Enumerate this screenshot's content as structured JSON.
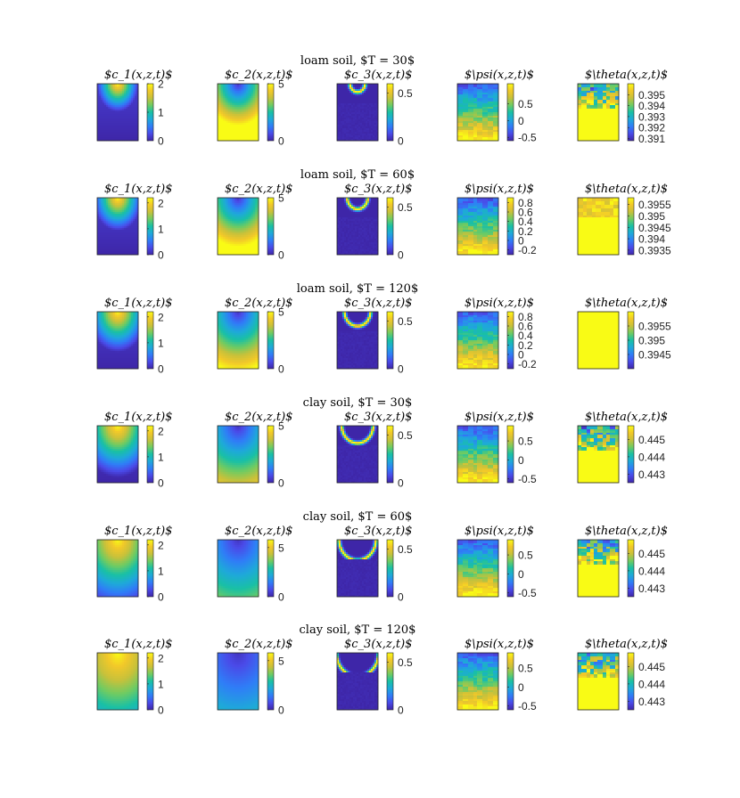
{
  "colormap": [
    "#3e26a8",
    "#4a4ae8",
    "#2f7df7",
    "#1ea9d9",
    "#19c0a5",
    "#6fcb62",
    "#c8c13a",
    "#f2c829",
    "#f9fb15"
  ],
  "variables": [
    "$c_1(x,z,t)$",
    "$c_2(x,z,t)$",
    "$c_3(x,z,t)$",
    "$\\psi(x,z,t)$",
    "$\\theta(x,z,t)$"
  ],
  "chart_data": [
    {
      "type": "heatmap",
      "title": "loam soil, $T = 30$",
      "panels": [
        {
          "name": "$c_1(x,z,t)$",
          "pattern": "plume",
          "clim": [
            0,
            2
          ],
          "ticks": [
            "2",
            "1",
            "0"
          ],
          "tick_values": [
            2,
            1,
            0
          ]
        },
        {
          "name": "$c_2(x,z,t)$",
          "pattern": "depleted",
          "clim": [
            0,
            5
          ],
          "ticks": [
            "5",
            "0"
          ],
          "tick_values": [
            5,
            0
          ]
        },
        {
          "name": "$c_3(x,z,t)$",
          "pattern": "ring",
          "clim": [
            0,
            0.6
          ],
          "ticks": [
            "0.5",
            "0"
          ],
          "tick_values": [
            0.5,
            0
          ]
        },
        {
          "name": "$\\psi(x,z,t)$",
          "pattern": "layered",
          "clim": [
            -0.6,
            1.1
          ],
          "ticks": [
            "0.5",
            "0",
            "-0.5"
          ],
          "tick_values": [
            0.5,
            0,
            -0.5
          ]
        },
        {
          "name": "$\\theta(x,z,t)$",
          "pattern": "top-noise",
          "clim": [
            0.3908,
            0.396
          ],
          "ticks": [
            "0.395",
            "0.394",
            "0.393",
            "0.392",
            "0.391"
          ],
          "tick_values": [
            0.395,
            0.394,
            0.393,
            0.392,
            0.391
          ]
        }
      ]
    },
    {
      "type": "heatmap",
      "title": "loam soil, $T = 60$",
      "panels": [
        {
          "name": "$c_1(x,z,t)$",
          "pattern": "plume",
          "clim": [
            0,
            2.2
          ],
          "ticks": [
            "2",
            "1",
            "0"
          ],
          "tick_values": [
            2,
            1,
            0
          ]
        },
        {
          "name": "$c_2(x,z,t)$",
          "pattern": "depleted",
          "clim": [
            0,
            5
          ],
          "ticks": [
            "5",
            "0"
          ],
          "tick_values": [
            5,
            0
          ]
        },
        {
          "name": "$c_3(x,z,t)$",
          "pattern": "ring",
          "clim": [
            0,
            0.6
          ],
          "ticks": [
            "0.5",
            "0"
          ],
          "tick_values": [
            0.5,
            0
          ]
        },
        {
          "name": "$\\psi(x,z,t)$",
          "pattern": "layered",
          "clim": [
            -0.3,
            0.9
          ],
          "ticks": [
            "0.8",
            "0.6",
            "0.4",
            "0.2",
            "0",
            "-0.2"
          ],
          "tick_values": [
            0.8,
            0.6,
            0.4,
            0.2,
            0,
            -0.2
          ]
        },
        {
          "name": "$\\theta(x,z,t)$",
          "pattern": "mostly-high",
          "clim": [
            0.3933,
            0.3958
          ],
          "ticks": [
            "0.3955",
            "0.395",
            "0.3945",
            "0.394",
            "0.3935"
          ],
          "tick_values": [
            0.3955,
            0.395,
            0.3945,
            0.394,
            0.3935
          ]
        }
      ]
    },
    {
      "type": "heatmap",
      "title": "loam soil, $T = 120$",
      "panels": [
        {
          "name": "$c_1(x,z,t)$",
          "pattern": "plume",
          "clim": [
            0,
            2.2
          ],
          "ticks": [
            "2",
            "1",
            "0"
          ],
          "tick_values": [
            2,
            1,
            0
          ]
        },
        {
          "name": "$c_2(x,z,t)$",
          "pattern": "depleted",
          "clim": [
            0,
            5
          ],
          "ticks": [
            "5",
            "0"
          ],
          "tick_values": [
            5,
            0
          ]
        },
        {
          "name": "$c_3(x,z,t)$",
          "pattern": "ring",
          "clim": [
            0,
            0.6
          ],
          "ticks": [
            "0.5",
            "0"
          ],
          "tick_values": [
            0.5,
            0
          ]
        },
        {
          "name": "$\\psi(x,z,t)$",
          "pattern": "layered",
          "clim": [
            -0.3,
            0.9
          ],
          "ticks": [
            "0.8",
            "0.6",
            "0.4",
            "0.2",
            "0",
            "-0.2"
          ],
          "tick_values": [
            0.8,
            0.6,
            0.4,
            0.2,
            0,
            -0.2
          ]
        },
        {
          "name": "$\\theta(x,z,t)$",
          "pattern": "uniform-high",
          "clim": [
            0.394,
            0.396
          ],
          "ticks": [
            "0.3955",
            "0.395",
            "0.3945"
          ],
          "tick_values": [
            0.3955,
            0.395,
            0.3945
          ]
        }
      ]
    },
    {
      "type": "heatmap",
      "title": "clay soil, $T = 30$",
      "panels": [
        {
          "name": "$c_1(x,z,t)$",
          "pattern": "plume",
          "clim": [
            0,
            2.2
          ],
          "ticks": [
            "2",
            "1",
            "0"
          ],
          "tick_values": [
            2,
            1,
            0
          ]
        },
        {
          "name": "$c_2(x,z,t)$",
          "pattern": "depleted",
          "clim": [
            0,
            5
          ],
          "ticks": [
            "5",
            "0"
          ],
          "tick_values": [
            5,
            0
          ]
        },
        {
          "name": "$c_3(x,z,t)$",
          "pattern": "ring",
          "clim": [
            0,
            0.6
          ],
          "ticks": [
            "0.5",
            "0"
          ],
          "tick_values": [
            0.5,
            0
          ]
        },
        {
          "name": "$\\psi(x,z,t)$",
          "pattern": "layered",
          "clim": [
            -0.6,
            0.9
          ],
          "ticks": [
            "0.5",
            "0",
            "-0.5"
          ],
          "tick_values": [
            0.5,
            0,
            -0.5
          ]
        },
        {
          "name": "$\\theta(x,z,t)$",
          "pattern": "top-noise",
          "clim": [
            0.4425,
            0.4458
          ],
          "ticks": [
            "0.445",
            "0.444",
            "0.443"
          ],
          "tick_values": [
            0.445,
            0.444,
            0.443
          ]
        }
      ]
    },
    {
      "type": "heatmap",
      "title": "clay soil, $T = 60$",
      "panels": [
        {
          "name": "$c_1(x,z,t)$",
          "pattern": "plume",
          "clim": [
            0,
            2.2
          ],
          "ticks": [
            "2",
            "1",
            "0"
          ],
          "tick_values": [
            2,
            1,
            0
          ]
        },
        {
          "name": "$c_2(x,z,t)$",
          "pattern": "depleted",
          "clim": [
            0,
            5.8
          ],
          "ticks": [
            "5",
            "0"
          ],
          "tick_values": [
            5,
            0
          ]
        },
        {
          "name": "$c_3(x,z,t)$",
          "pattern": "ring",
          "clim": [
            0,
            0.6
          ],
          "ticks": [
            "0.5",
            "0"
          ],
          "tick_values": [
            0.5,
            0
          ]
        },
        {
          "name": "$\\psi(x,z,t)$",
          "pattern": "layered",
          "clim": [
            -0.6,
            0.9
          ],
          "ticks": [
            "0.5",
            "0",
            "-0.5"
          ],
          "tick_values": [
            0.5,
            0,
            -0.5
          ]
        },
        {
          "name": "$\\theta(x,z,t)$",
          "pattern": "top-noise",
          "clim": [
            0.4425,
            0.4458
          ],
          "ticks": [
            "0.445",
            "0.444",
            "0.443"
          ],
          "tick_values": [
            0.445,
            0.444,
            0.443
          ]
        }
      ]
    },
    {
      "type": "heatmap",
      "title": "clay soil, $T = 120$",
      "panels": [
        {
          "name": "$c_1(x,z,t)$",
          "pattern": "plume",
          "clim": [
            0,
            2.2
          ],
          "ticks": [
            "2",
            "1",
            "0"
          ],
          "tick_values": [
            2,
            1,
            0
          ]
        },
        {
          "name": "$c_2(x,z,t)$",
          "pattern": "depleted",
          "clim": [
            0,
            5.8
          ],
          "ticks": [
            "5",
            "0"
          ],
          "tick_values": [
            5,
            0
          ]
        },
        {
          "name": "$c_3(x,z,t)$",
          "pattern": "ring",
          "clim": [
            0,
            0.6
          ],
          "ticks": [
            "0.5",
            "0"
          ],
          "tick_values": [
            0.5,
            0
          ]
        },
        {
          "name": "$\\psi(x,z,t)$",
          "pattern": "layered",
          "clim": [
            -0.6,
            0.9
          ],
          "ticks": [
            "0.5",
            "0",
            "-0.5"
          ],
          "tick_values": [
            0.5,
            0,
            -0.5
          ]
        },
        {
          "name": "$\\theta(x,z,t)$",
          "pattern": "top-noise",
          "clim": [
            0.4425,
            0.4458
          ],
          "ticks": [
            "0.445",
            "0.444",
            "0.443"
          ],
          "tick_values": [
            0.445,
            0.444,
            0.443
          ]
        }
      ]
    }
  ]
}
